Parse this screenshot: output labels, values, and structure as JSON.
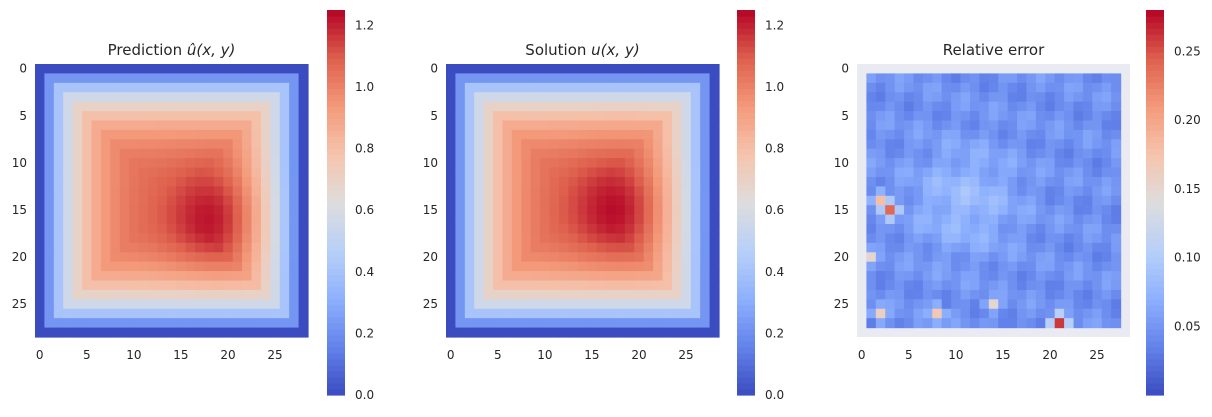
{
  "chart_data": [
    {
      "type": "heatmap",
      "title": "Prediction",
      "title_math": "û(x, y)",
      "colormap": "coolwarm",
      "grid_size": [
        29,
        29
      ],
      "x_ticks": [
        0,
        5,
        10,
        15,
        20,
        25
      ],
      "y_ticks": [
        0,
        5,
        10,
        15,
        20,
        25
      ],
      "colorbar": {
        "min": 0.0,
        "max": 1.25,
        "ticks": [
          "0.0",
          "0.2",
          "0.4",
          "0.6",
          "0.8",
          "1.0",
          "1.2"
        ],
        "tick_values": [
          0,
          0.2,
          0.4,
          0.6,
          0.8,
          1.0,
          1.2
        ]
      },
      "peak": {
        "x": 19,
        "y": 16,
        "value": 1.25
      },
      "boundary_value": 0.0
    },
    {
      "type": "heatmap",
      "title": "Solution",
      "title_math": "u(x, y)",
      "colormap": "coolwarm",
      "grid_size": [
        29,
        29
      ],
      "x_ticks": [
        0,
        5,
        10,
        15,
        20,
        25
      ],
      "y_ticks": [
        0,
        5,
        10,
        15,
        20,
        25
      ],
      "colorbar": {
        "min": 0.0,
        "max": 1.25,
        "ticks": [
          "0.0",
          "0.2",
          "0.4",
          "0.6",
          "0.8",
          "1.0",
          "1.2"
        ],
        "tick_values": [
          0,
          0.2,
          0.4,
          0.6,
          0.8,
          1.0,
          1.2
        ]
      },
      "peak": {
        "x": 18,
        "y": 15,
        "value": 1.25
      },
      "boundary_value": 0.0
    },
    {
      "type": "heatmap",
      "title": "Relative error",
      "colormap": "coolwarm",
      "grid_size": [
        29,
        29
      ],
      "data_region": {
        "x": [
          1,
          27
        ],
        "y": [
          1,
          27
        ]
      },
      "x_ticks": [
        0,
        5,
        10,
        15,
        20,
        25
      ],
      "y_ticks": [
        0,
        5,
        10,
        15,
        20,
        25
      ],
      "colorbar": {
        "min": 0.0,
        "max": 0.28,
        "ticks": [
          "0.05",
          "0.10",
          "0.15",
          "0.20",
          "0.25"
        ],
        "tick_values": [
          0.05,
          0.1,
          0.15,
          0.2,
          0.25
        ]
      },
      "hotspots": [
        {
          "x": 3,
          "y": 15,
          "value": 0.24
        },
        {
          "x": 2,
          "y": 14,
          "value": 0.18
        },
        {
          "x": 2,
          "y": 26,
          "value": 0.16
        },
        {
          "x": 1,
          "y": 20,
          "value": 0.15
        },
        {
          "x": 21,
          "y": 27,
          "value": 0.26
        },
        {
          "x": 8,
          "y": 26,
          "value": 0.17
        },
        {
          "x": 14,
          "y": 25,
          "value": 0.15
        }
      ]
    }
  ]
}
